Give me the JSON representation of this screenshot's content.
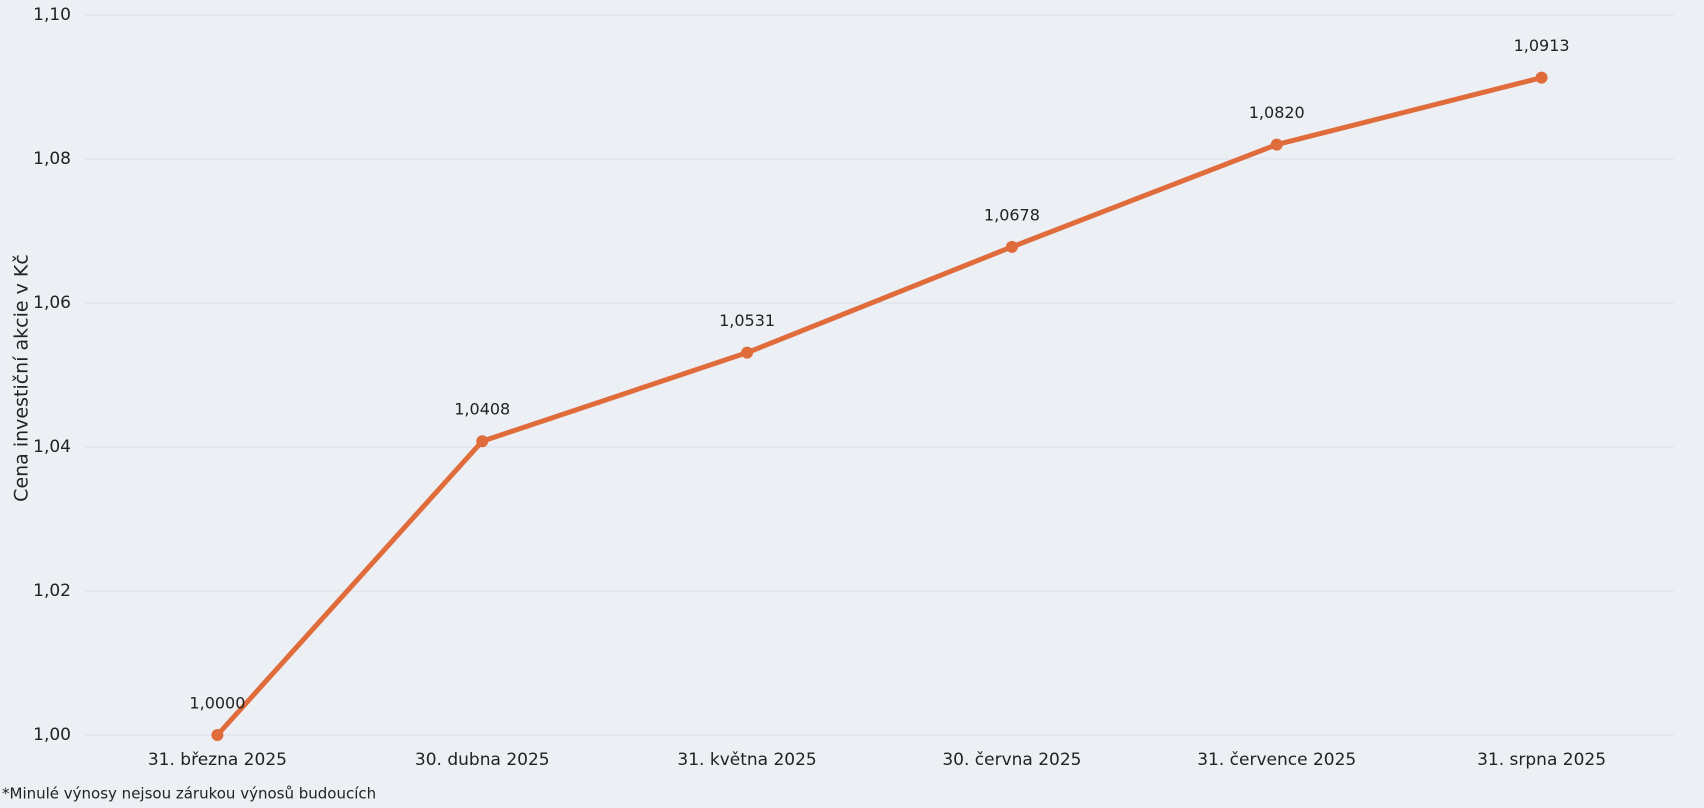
{
  "chart_data": {
    "type": "line",
    "y_label": "Cena investiční akcie v Kč",
    "footnote": "*Minulé výnosy nejsou zárukou výnosů budoucích",
    "categories": [
      "31. března 2025",
      "30. dubna 2025",
      "31. května 2025",
      "30. června 2025",
      "31. července 2025",
      "31. srpna 2025"
    ],
    "series": [
      {
        "name": "Cena investiční akcie",
        "color": "#e06c3c",
        "values": [
          1.0,
          1.0408,
          1.0531,
          1.0678,
          1.082,
          1.0913
        ],
        "value_labels": [
          "1,0000",
          "1,0408",
          "1,0531",
          "1,0678",
          "1,0820",
          "1,0913"
        ]
      }
    ],
    "ylim": [
      1.0,
      1.1
    ],
    "yticks": [
      {
        "value": 1.0,
        "label": "1,00"
      },
      {
        "value": 1.02,
        "label": "1,02"
      },
      {
        "value": 1.04,
        "label": "1,04"
      },
      {
        "value": 1.06,
        "label": "1,06"
      },
      {
        "value": 1.08,
        "label": "1,08"
      },
      {
        "value": 1.1,
        "label": "1,10"
      }
    ],
    "grid": true
  }
}
